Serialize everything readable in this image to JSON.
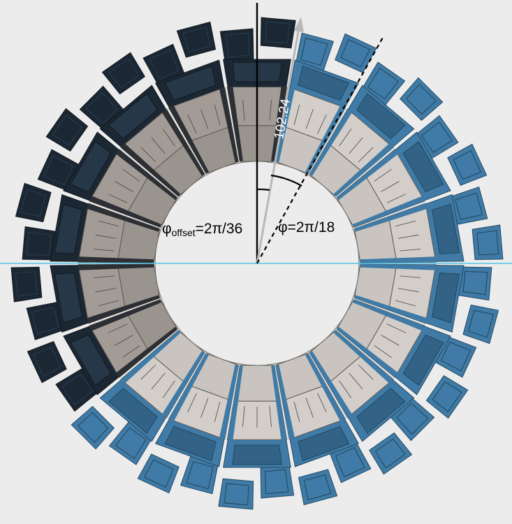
{
  "labels": {
    "radius": "102.24",
    "phi_offset_symbol": "φ",
    "phi_offset_subscript": "offset",
    "phi_offset_value": "=2π/36",
    "phi_label": "φ=2π/18"
  },
  "geometry": {
    "segments": 18,
    "phi_offset_deg": 10,
    "phi_deg": 20
  },
  "colors": {
    "background": "#ececec",
    "module_dark": "#1b2733",
    "module_blue": "#3f7ba6",
    "tile_light": "#c9c4bf",
    "tile_shadow": "#9a948f",
    "horizontal_axis": "#4fc3e8",
    "vertical_axis": "#000000",
    "radius_arrow": "#b5b5b5"
  }
}
